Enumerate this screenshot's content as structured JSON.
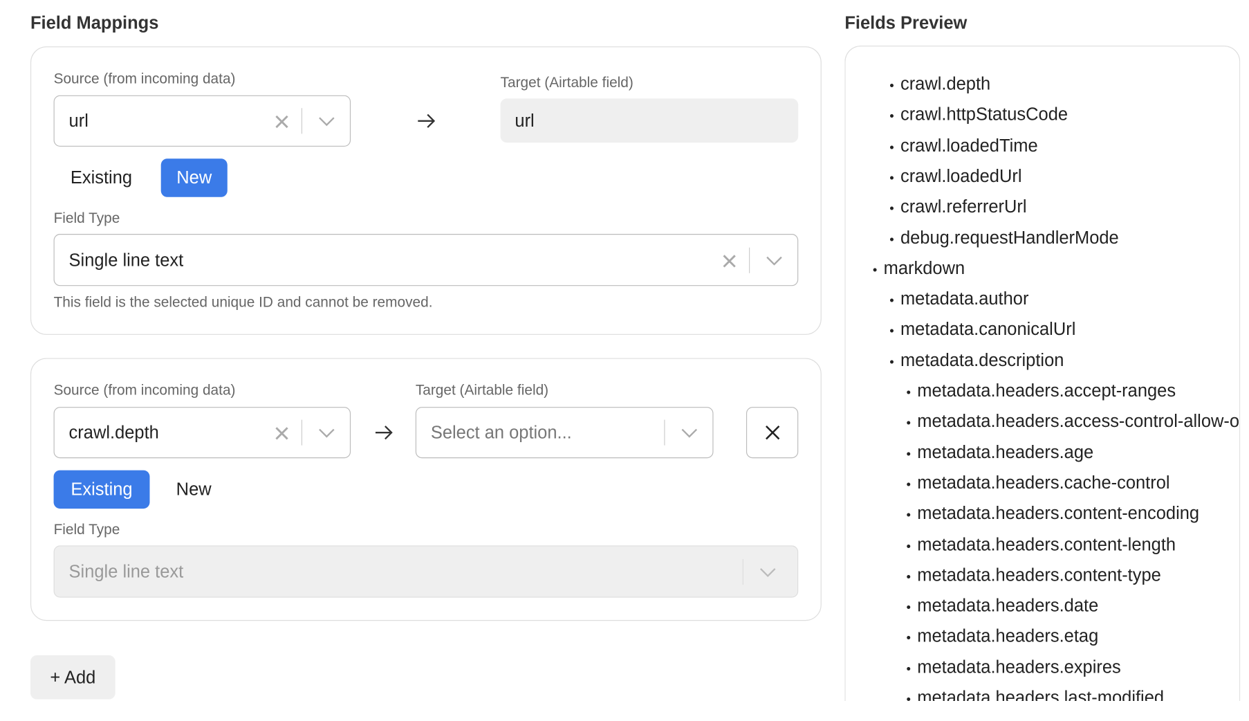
{
  "left": {
    "title": "Field Mappings",
    "mappings": [
      {
        "source_label": "Source (from incoming data)",
        "source_value": "url",
        "target_label": "Target (Airtable field)",
        "target_value": "url",
        "mode_options": [
          "Existing",
          "New"
        ],
        "selected_mode": "New",
        "field_type_label": "Field Type",
        "field_type_value": "Single line text",
        "note": "This field is the selected unique ID and cannot be removed."
      },
      {
        "source_label": "Source (from incoming data)",
        "source_value": "crawl.depth",
        "target_label": "Target (Airtable field)",
        "target_placeholder": "Select an option...",
        "mode_options": [
          "Existing",
          "New"
        ],
        "selected_mode": "Existing",
        "field_type_label": "Field Type",
        "field_type_value": "Single line text"
      }
    ],
    "add_button": "+ Add"
  },
  "right": {
    "title": "Fields Preview",
    "items": [
      {
        "text": "crawl.depth",
        "depth": 1
      },
      {
        "text": "crawl.httpStatusCode",
        "depth": 1
      },
      {
        "text": "crawl.loadedTime",
        "depth": 1
      },
      {
        "text": "crawl.loadedUrl",
        "depth": 1
      },
      {
        "text": "crawl.referrerUrl",
        "depth": 1
      },
      {
        "text": "debug.requestHandlerMode",
        "depth": 1
      },
      {
        "text": "markdown",
        "depth": 0
      },
      {
        "text": "metadata.author",
        "depth": 1
      },
      {
        "text": "metadata.canonicalUrl",
        "depth": 1
      },
      {
        "text": "metadata.description",
        "depth": 1
      },
      {
        "text": "metadata.headers.accept-ranges",
        "depth": 2
      },
      {
        "text": "metadata.headers.access-control-allow-origin",
        "depth": 2
      },
      {
        "text": "metadata.headers.age",
        "depth": 2
      },
      {
        "text": "metadata.headers.cache-control",
        "depth": 2
      },
      {
        "text": "metadata.headers.content-encoding",
        "depth": 2
      },
      {
        "text": "metadata.headers.content-length",
        "depth": 2
      },
      {
        "text": "metadata.headers.content-type",
        "depth": 2
      },
      {
        "text": "metadata.headers.date",
        "depth": 2
      },
      {
        "text": "metadata.headers.etag",
        "depth": 2
      },
      {
        "text": "metadata.headers.expires",
        "depth": 2
      },
      {
        "text": "metadata.headers.last-modified",
        "depth": 2
      }
    ]
  }
}
